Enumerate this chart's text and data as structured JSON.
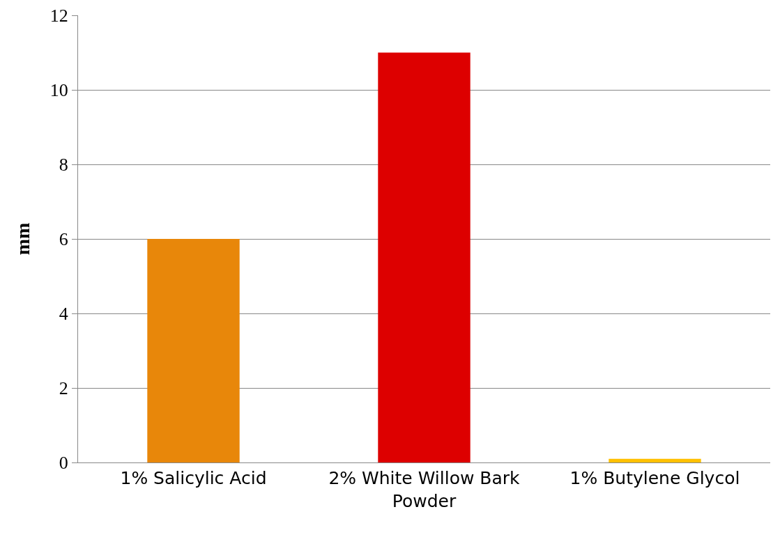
{
  "chart_data": {
    "type": "bar",
    "ylabel": "mm",
    "categories": [
      "1% Salicylic Acid",
      "2% White Willow Bark Powder",
      "1% Butylene Glycol"
    ],
    "values": [
      6,
      11,
      0.1
    ],
    "colors": [
      "#e8870a",
      "#dd0000",
      "#ffc000"
    ],
    "ylim": [
      0,
      12
    ],
    "yticks": [
      0,
      2,
      4,
      6,
      8,
      10,
      12
    ],
    "grid": "y"
  }
}
